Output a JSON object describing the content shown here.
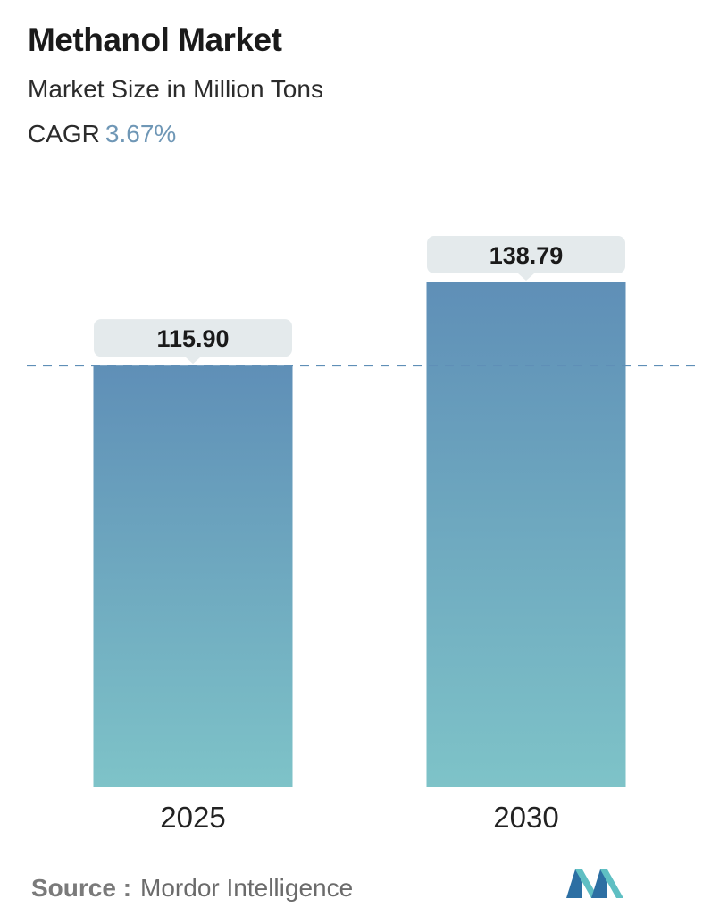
{
  "header": {
    "title": "Methanol Market",
    "subtitle": "Market Size in Million Tons",
    "cagr_label": "CAGR",
    "cagr_value": "3.67%"
  },
  "chart_data": {
    "type": "bar",
    "categories": [
      "2025",
      "2030"
    ],
    "values": [
      115.9,
      138.79
    ],
    "value_labels": [
      "115.90",
      "138.79"
    ],
    "title": "Methanol Market",
    "subtitle": "Market Size in Million Tons",
    "grid": false,
    "reference_line": "dashed line at 2025 value"
  },
  "footer": {
    "source_label": "Source :",
    "source_name": "Mordor Intelligence"
  },
  "colors": {
    "bar_top": "#5f8fb7",
    "bar_bottom": "#7ec3c8",
    "label_bg": "#e4eaec",
    "dashed_line": "#5f8fb7",
    "cagr_value": "#6f97b6",
    "logo_dark": "#2d6fa3",
    "logo_light": "#5fbfc3"
  },
  "icons": {
    "logo": "mordor-intelligence-logo-icon"
  }
}
